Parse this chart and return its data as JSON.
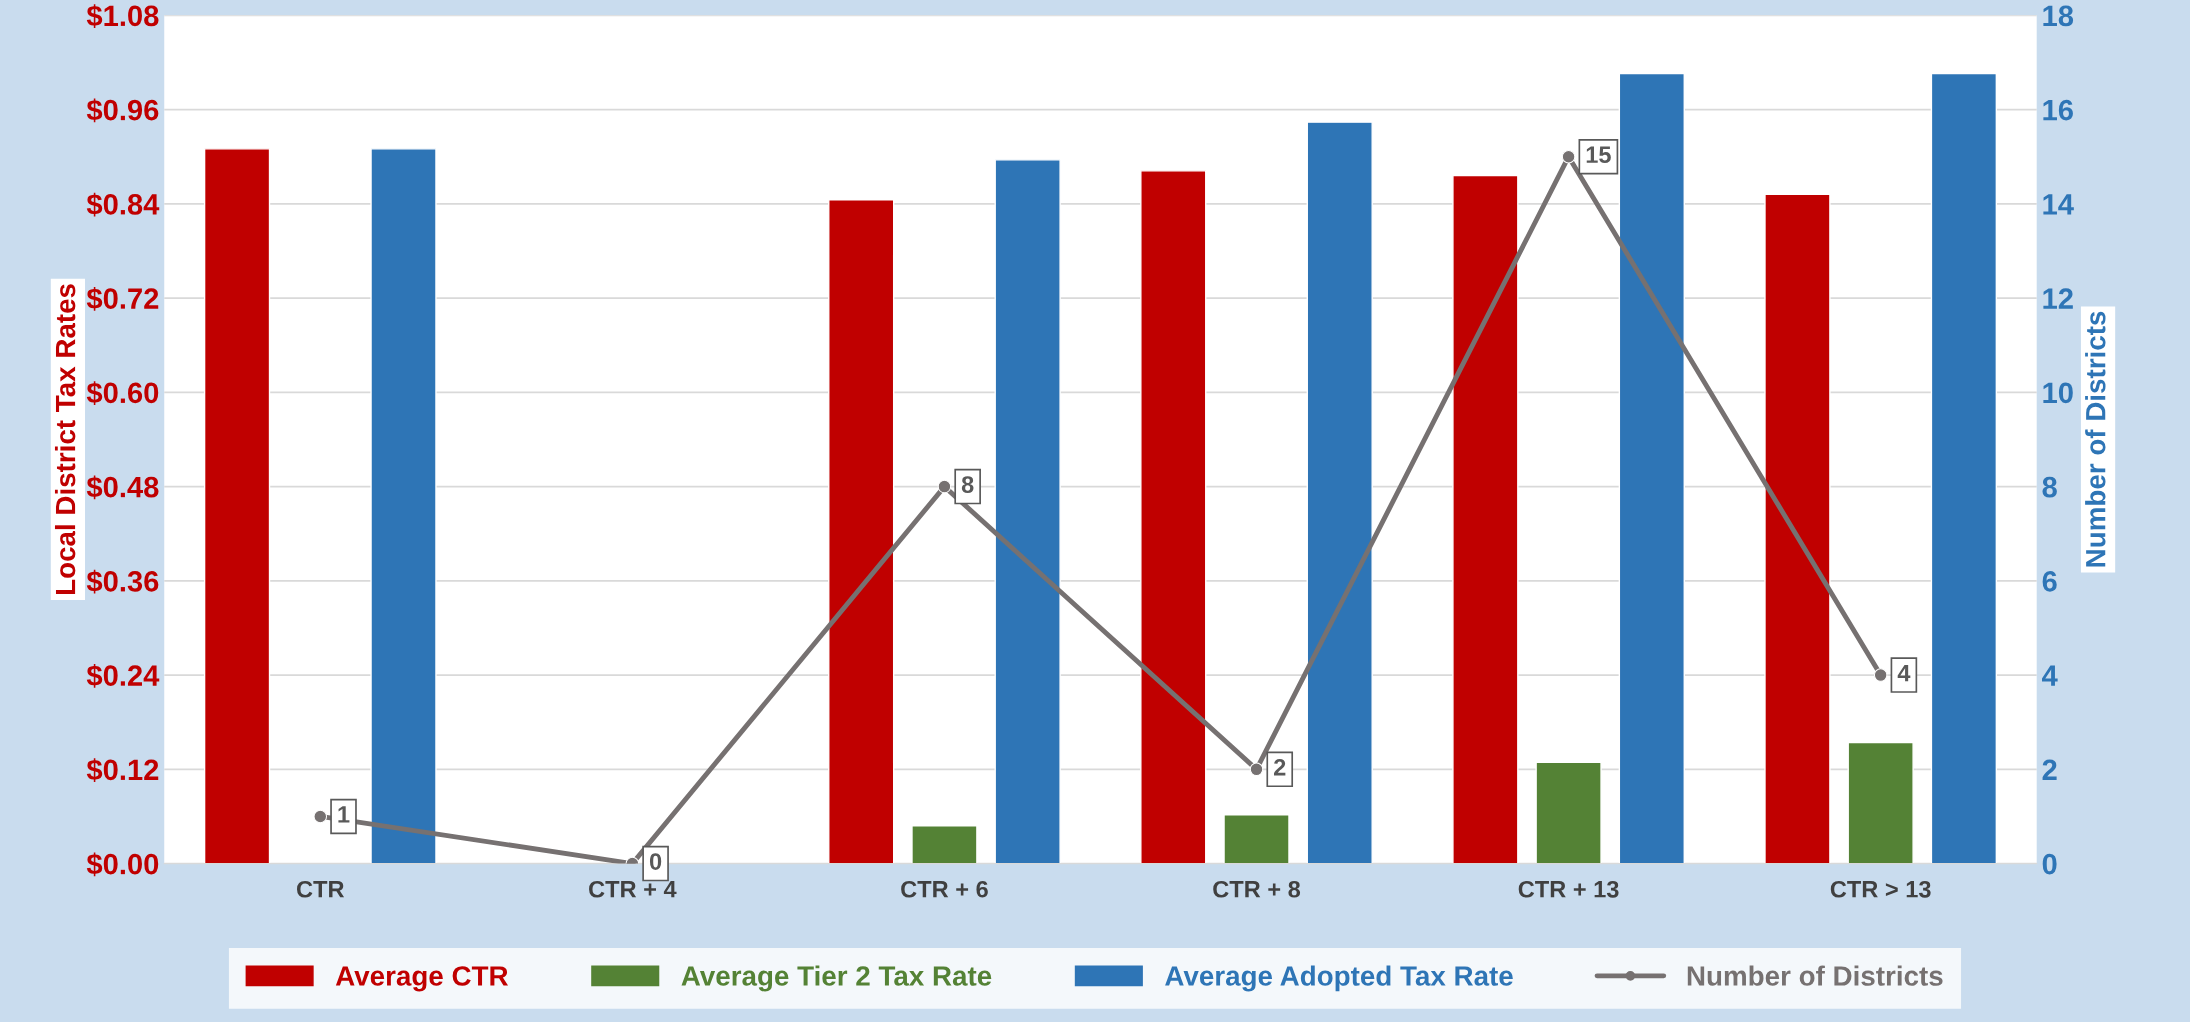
{
  "chart_data": {
    "type": "bar",
    "ylabel": "Local District Tax Rates",
    "y2label": "Number of Districts",
    "categories": [
      "CTR",
      "CTR + 4",
      "CTR + 6",
      "CTR + 8",
      "CTR + 13",
      "CTR > 13"
    ],
    "series": [
      {
        "name": "Average CTR",
        "color": "#c00000",
        "values": [
          0.91,
          null,
          0.845,
          0.882,
          0.876,
          0.852
        ]
      },
      {
        "name": "Average Tier 2 Tax Rate",
        "color": "#548235",
        "values": [
          null,
          null,
          0.048,
          0.062,
          0.129,
          0.154
        ]
      },
      {
        "name": "Average Adopted Tax Rate",
        "color": "#2e75b6",
        "values": [
          0.91,
          null,
          0.896,
          0.944,
          1.006,
          1.006
        ]
      },
      {
        "name": "Number of Districts",
        "type": "line",
        "axis": "y2",
        "color": "#767171",
        "marker": "circle",
        "values": [
          1,
          0,
          8,
          2,
          15,
          4
        ],
        "value_labels": [
          "1",
          "0",
          "8",
          "2",
          "15",
          "4"
        ]
      }
    ],
    "ylim": [
      0,
      1.08
    ],
    "yticks": [
      {
        "value": 0,
        "label": "$0.00"
      },
      {
        "value": 0.12,
        "label": "$0.12"
      },
      {
        "value": 0.24,
        "label": "$0.24"
      },
      {
        "value": 0.36,
        "label": "$0.36"
      },
      {
        "value": 0.48,
        "label": "$0.48"
      },
      {
        "value": 0.6,
        "label": "$0.60"
      },
      {
        "value": 0.72,
        "label": "$0.72"
      },
      {
        "value": 0.84,
        "label": "$0.84"
      },
      {
        "value": 0.96,
        "label": "$0.96"
      },
      {
        "value": 1.08,
        "label": "$1.08"
      }
    ],
    "y2lim": [
      0,
      18
    ],
    "y2ticks": [
      0,
      2,
      4,
      6,
      8,
      10,
      12,
      14,
      16,
      18
    ],
    "grid": "y",
    "legend": "bottom"
  }
}
